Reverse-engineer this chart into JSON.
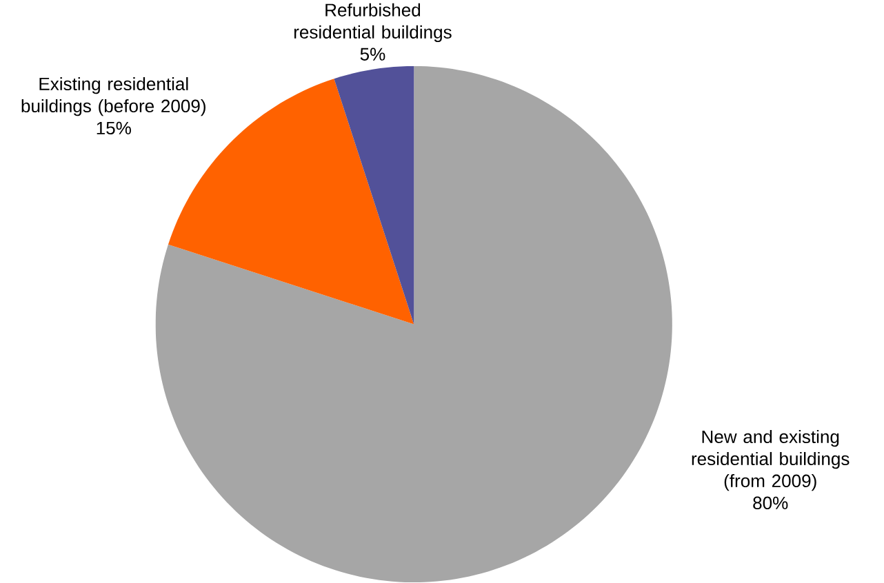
{
  "chart_data": {
    "type": "pie",
    "categories": [
      "New and existing residential buildings (from 2009)",
      "Existing residential buildings (before 2009)",
      "Refurbished residential buildings"
    ],
    "values": [
      80,
      15,
      5
    ],
    "value_labels": [
      "80%",
      "15%",
      "5%"
    ],
    "colors": [
      "#a6a6a6",
      "#ff6200",
      "#525199"
    ]
  }
}
